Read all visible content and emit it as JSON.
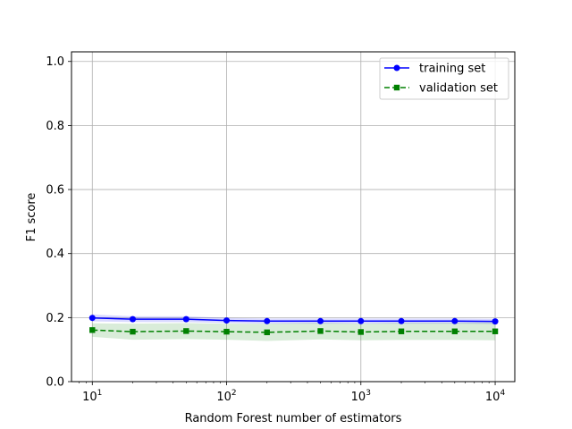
{
  "chart_data": {
    "type": "line",
    "title": "",
    "xlabel": "Random Forest number of estimators",
    "ylabel": "F1 score",
    "xscale": "log",
    "xlim": [
      7,
      14000
    ],
    "ylim": [
      0.0,
      1.03
    ],
    "grid": true,
    "legend_position": "upper right",
    "x_ticks": [
      {
        "value": 10,
        "base": "10",
        "exp": "1"
      },
      {
        "value": 100,
        "base": "10",
        "exp": "2"
      },
      {
        "value": 1000,
        "base": "10",
        "exp": "3"
      },
      {
        "value": 10000,
        "base": "10",
        "exp": "4"
      }
    ],
    "y_ticks": [
      {
        "value": 0.0,
        "label": "0.0"
      },
      {
        "value": 0.2,
        "label": "0.2"
      },
      {
        "value": 0.4,
        "label": "0.4"
      },
      {
        "value": 0.6,
        "label": "0.6"
      },
      {
        "value": 0.8,
        "label": "0.8"
      },
      {
        "value": 1.0,
        "label": "1.0"
      }
    ],
    "x": [
      10,
      20,
      50,
      100,
      200,
      500,
      1000,
      2000,
      5000,
      10000
    ],
    "series": [
      {
        "name": "training set",
        "color": "#0000ff",
        "marker": "circle",
        "linestyle": "solid",
        "values": [
          0.199,
          0.195,
          0.195,
          0.191,
          0.189,
          0.189,
          0.189,
          0.189,
          0.189,
          0.188
        ],
        "band_lower": [
          0.188,
          0.186,
          0.186,
          0.183,
          0.181,
          0.181,
          0.181,
          0.181,
          0.181,
          0.18
        ],
        "band_upper": [
          0.21,
          0.204,
          0.204,
          0.199,
          0.197,
          0.197,
          0.197,
          0.197,
          0.197,
          0.196
        ]
      },
      {
        "name": "validation set",
        "color": "#008000",
        "marker": "square",
        "linestyle": "dashed",
        "values": [
          0.161,
          0.156,
          0.158,
          0.156,
          0.154,
          0.158,
          0.155,
          0.157,
          0.157,
          0.157
        ],
        "band_lower": [
          0.14,
          0.131,
          0.133,
          0.131,
          0.127,
          0.132,
          0.129,
          0.13,
          0.13,
          0.129
        ],
        "band_upper": [
          0.182,
          0.181,
          0.183,
          0.181,
          0.181,
          0.184,
          0.181,
          0.184,
          0.184,
          0.185
        ]
      }
    ]
  }
}
